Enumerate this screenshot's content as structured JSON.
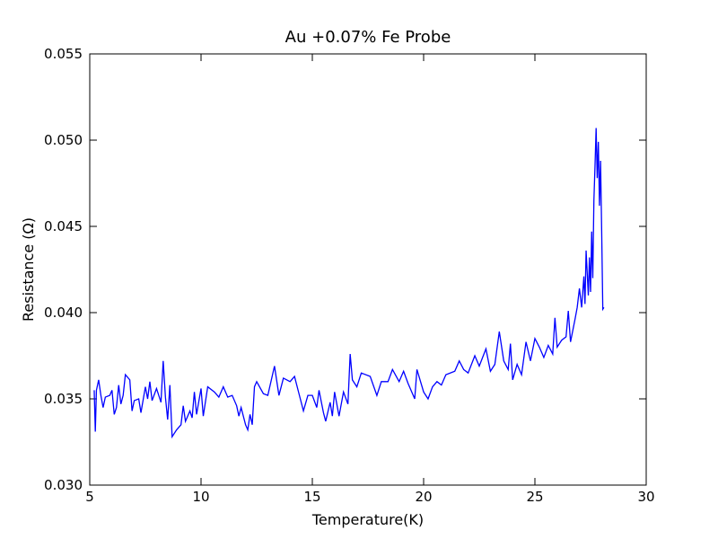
{
  "chart_data": {
    "type": "line",
    "title": "Au +0.07% Fe Probe",
    "x_label": "Temperature(K)",
    "y_label": "Resistance (Ω)",
    "xlim": [
      5,
      30
    ],
    "xticks": [
      5,
      10,
      15,
      20,
      25,
      30
    ],
    "ylim": [
      0.03,
      0.055
    ],
    "yticks": [
      {
        "value": 0.03,
        "label": "0.030"
      },
      0.035,
      {
        "value": 0.04,
        "label": "0.040"
      },
      0.045,
      {
        "value": 0.05,
        "label": "0.050"
      },
      0.055
    ],
    "grid": false,
    "series": [
      {
        "color": "#0000ff",
        "x": [
          5.2,
          5.25,
          5.3,
          5.4,
          5.5,
          5.6,
          5.7,
          5.9,
          6.0,
          6.1,
          6.2,
          6.3,
          6.4,
          6.5,
          6.6,
          6.8,
          6.9,
          7.0,
          7.2,
          7.3,
          7.5,
          7.6,
          7.7,
          7.8,
          8.0,
          8.2,
          8.3,
          8.4,
          8.5,
          8.6,
          8.7,
          8.9,
          9.1,
          9.2,
          9.3,
          9.5,
          9.6,
          9.7,
          9.8,
          10.0,
          10.1,
          10.3,
          10.6,
          10.8,
          11.0,
          11.2,
          11.4,
          11.6,
          11.7,
          11.8,
          12.0,
          12.1,
          12.2,
          12.3,
          12.4,
          12.5,
          12.8,
          13.0,
          13.3,
          13.5,
          13.7,
          14.0,
          14.2,
          14.4,
          14.6,
          14.8,
          15.0,
          15.2,
          15.3,
          15.5,
          15.6,
          15.8,
          15.9,
          16.0,
          16.2,
          16.4,
          16.6,
          16.7,
          16.8,
          17.0,
          17.2,
          17.6,
          17.9,
          18.1,
          18.4,
          18.6,
          18.9,
          19.1,
          19.3,
          19.6,
          19.7,
          20.0,
          20.2,
          20.4,
          20.6,
          20.8,
          21.0,
          21.4,
          21.6,
          21.8,
          22.0,
          22.3,
          22.5,
          22.8,
          23.0,
          23.2,
          23.4,
          23.6,
          23.8,
          23.9,
          24.0,
          24.2,
          24.4,
          24.6,
          24.8,
          25.0,
          25.2,
          25.4,
          25.6,
          25.8,
          25.9,
          26.0,
          26.2,
          26.4,
          26.5,
          26.6,
          26.8,
          26.9,
          27.0,
          27.1,
          27.2,
          27.25,
          27.3,
          27.4,
          27.45,
          27.5,
          27.55,
          27.6,
          27.65,
          27.7,
          27.75,
          27.8,
          27.85,
          27.9,
          27.95,
          28.0,
          28.05,
          28.1
        ],
        "values": [
          0.0355,
          0.0331,
          0.0355,
          0.0361,
          0.0352,
          0.0345,
          0.0351,
          0.0352,
          0.0355,
          0.0341,
          0.0345,
          0.0358,
          0.0347,
          0.0352,
          0.0364,
          0.0361,
          0.0343,
          0.0349,
          0.035,
          0.0342,
          0.0357,
          0.035,
          0.036,
          0.0349,
          0.0356,
          0.0348,
          0.0372,
          0.0351,
          0.0338,
          0.0358,
          0.0328,
          0.0332,
          0.0335,
          0.0346,
          0.0337,
          0.0343,
          0.0339,
          0.0354,
          0.0341,
          0.0356,
          0.034,
          0.0357,
          0.0354,
          0.0351,
          0.0357,
          0.0351,
          0.0352,
          0.0346,
          0.034,
          0.0345,
          0.0335,
          0.0332,
          0.0341,
          0.0335,
          0.0357,
          0.036,
          0.0353,
          0.0352,
          0.0369,
          0.0352,
          0.0362,
          0.036,
          0.0363,
          0.0353,
          0.0343,
          0.0352,
          0.0352,
          0.0345,
          0.0355,
          0.0342,
          0.0337,
          0.0348,
          0.034,
          0.0354,
          0.034,
          0.0354,
          0.0347,
          0.0376,
          0.0361,
          0.0357,
          0.0365,
          0.0363,
          0.0352,
          0.036,
          0.036,
          0.0367,
          0.036,
          0.0366,
          0.0359,
          0.035,
          0.0367,
          0.0354,
          0.035,
          0.0357,
          0.036,
          0.0358,
          0.0364,
          0.0366,
          0.0372,
          0.0367,
          0.0365,
          0.0375,
          0.0369,
          0.0379,
          0.0366,
          0.037,
          0.0389,
          0.0372,
          0.0367,
          0.0382,
          0.0361,
          0.037,
          0.0364,
          0.0383,
          0.0372,
          0.0385,
          0.038,
          0.0374,
          0.0381,
          0.0376,
          0.0397,
          0.038,
          0.0384,
          0.0386,
          0.0401,
          0.0383,
          0.0396,
          0.0403,
          0.0414,
          0.0403,
          0.0421,
          0.0405,
          0.0436,
          0.041,
          0.0432,
          0.0412,
          0.0447,
          0.042,
          0.0465,
          0.0485,
          0.0507,
          0.0478,
          0.0499,
          0.0462,
          0.0488,
          0.0447,
          0.0402,
          0.0403
        ]
      }
    ]
  }
}
